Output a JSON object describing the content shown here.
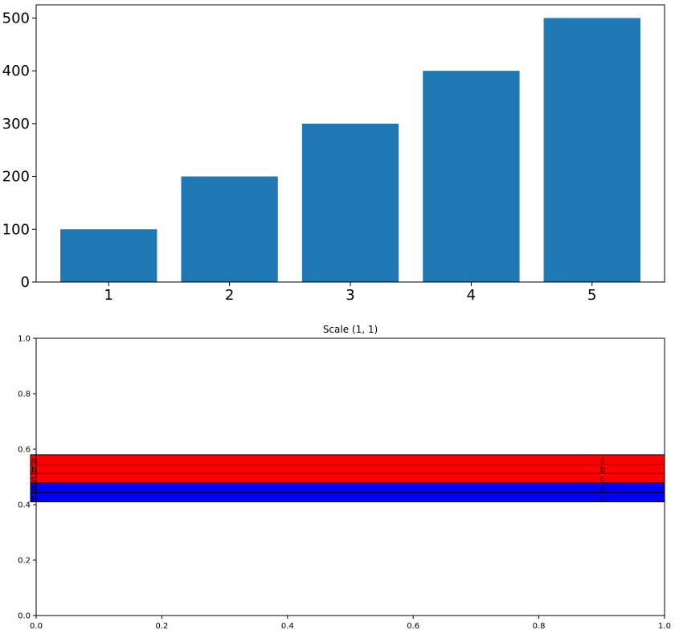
{
  "chart_data": [
    {
      "type": "bar",
      "categories": [
        "1",
        "2",
        "3",
        "4",
        "5"
      ],
      "values": [
        100,
        200,
        300,
        400,
        500
      ],
      "title": "",
      "xlabel": "",
      "ylabel": "",
      "ylim": [
        0,
        525
      ],
      "yticks": [
        0,
        100,
        200,
        300,
        400,
        500
      ],
      "bar_color": "#1f77b4",
      "grid": false
    },
    {
      "type": "table",
      "title": "Scale (1, 1)",
      "xlim": [
        0,
        1
      ],
      "ylim": [
        0,
        1
      ],
      "xticks": [
        "0.0",
        "0.2",
        "0.4",
        "0.6",
        "0.8",
        "1.0"
      ],
      "yticks": [
        "0.0",
        "0.2",
        "0.4",
        "0.6",
        "0.8",
        "1.0"
      ],
      "rows": [
        {
          "left": "a",
          "right": "a",
          "color": "#ff0000"
        },
        {
          "left": "b",
          "right": "b",
          "color": "#ff0000"
        },
        {
          "left": "c",
          "right": "c",
          "color": "#ff0000"
        },
        {
          "left": "d",
          "right": "d",
          "color": "#0000ff"
        },
        {
          "left": "e",
          "right": "e",
          "color": "#0000ff"
        }
      ],
      "row_y_range": [
        0.41,
        0.58
      ],
      "right_text_x": 0.9,
      "grid": false
    }
  ]
}
